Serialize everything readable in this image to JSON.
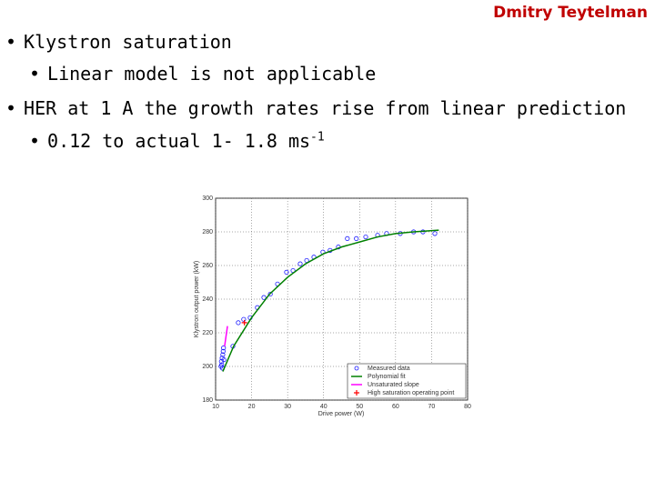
{
  "header": {
    "author": "Dmitry Teytelman"
  },
  "bullets": [
    {
      "text": "Klystron saturation",
      "sub": [
        {
          "text": "Linear model is not applicable"
        }
      ]
    },
    {
      "text": "HER at 1 A the growth rates rise from linear prediction",
      "sub": [
        {
          "text": "0.12 to actual 1- 1.8 ms",
          "sup": "-1"
        }
      ]
    }
  ],
  "chart_data": {
    "type": "scatter",
    "x_label": "Drive power (W)",
    "y_label": "Klystron output power (kW)",
    "xlim": [
      10,
      80
    ],
    "xticks": [
      10,
      20,
      30,
      40,
      50,
      60,
      70,
      80
    ],
    "ylim": [
      180,
      300
    ],
    "yticks": [
      180,
      200,
      220,
      240,
      260,
      280,
      300
    ],
    "grid": true,
    "legend": "lower right",
    "series": [
      {
        "name": "Measured data",
        "mode": "markers",
        "color": "#1a1aff",
        "x": [
          11.5,
          11.6,
          11.7,
          11.8,
          11.9,
          12,
          12.1,
          12.2,
          12.3,
          14.8,
          16.3,
          17.8,
          19.6,
          21.6,
          23.4,
          25.2,
          27.2,
          29.7,
          31.5,
          33.5,
          35.3,
          37.3,
          39.8,
          41.8,
          44.1,
          46.6,
          49.1,
          51.7,
          55,
          57.5,
          61.3,
          65,
          67.6,
          70.9
        ],
        "values": [
          200,
          203,
          201,
          205,
          199,
          207,
          209,
          211,
          204,
          212,
          226,
          228,
          229,
          235,
          241,
          243,
          249,
          256,
          257,
          261,
          263,
          265,
          268,
          269,
          271,
          276,
          276,
          277,
          278,
          279,
          279,
          280,
          280,
          279
        ]
      },
      {
        "name": "Polynomial fit",
        "mode": "lines",
        "color": "#008000",
        "x": [
          12,
          15,
          20,
          25,
          30,
          35,
          40,
          45,
          50,
          55,
          60,
          65,
          72
        ],
        "values": [
          197,
          212,
          229,
          243,
          253,
          261,
          267,
          271,
          274,
          277,
          279,
          280,
          281
        ]
      },
      {
        "name": "Unsaturated slope",
        "mode": "lines",
        "color": "#ff00ff",
        "x": [
          12.5,
          13.3
        ],
        "values": [
          212,
          224
        ]
      },
      {
        "name": "High saturation operating point",
        "mode": "plus",
        "color": "#ff0000",
        "x": [
          18
        ],
        "values": [
          226
        ]
      }
    ]
  }
}
